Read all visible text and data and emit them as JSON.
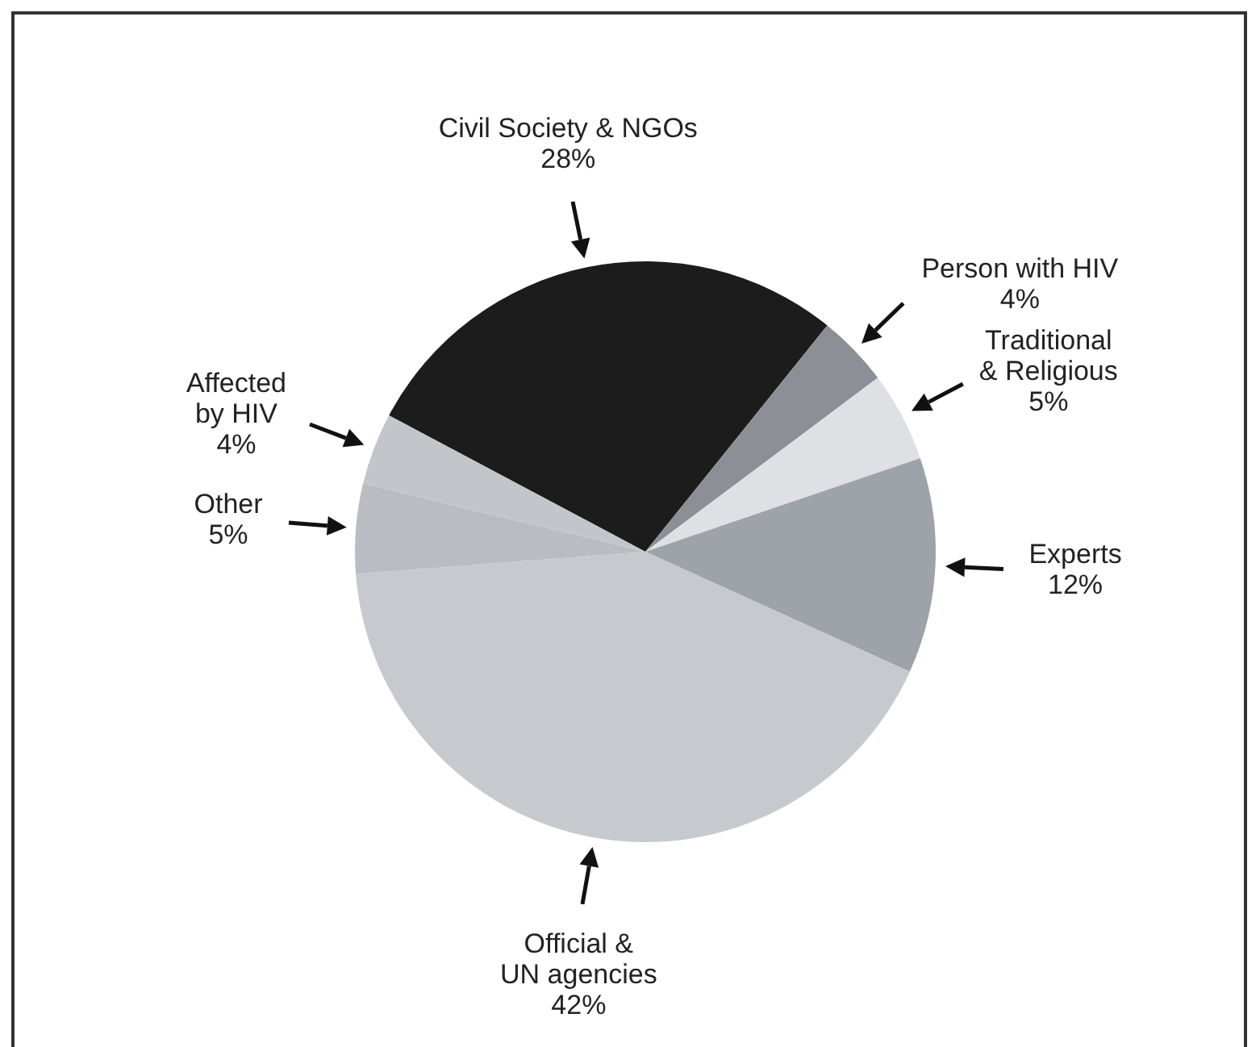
{
  "chart_data": {
    "type": "pie",
    "categories": [
      "Civil Society & NGOs",
      "Person with HIV",
      "Traditional\n& Religious",
      "Experts",
      "Official &\nUN agencies",
      "Other",
      "Affected\nby HIV"
    ],
    "values": [
      28,
      4,
      5,
      12,
      42,
      5,
      4
    ],
    "value_labels": [
      "28%",
      "4%",
      "5%",
      "12%",
      "42%",
      "5%",
      "4%"
    ],
    "colors": [
      "#1c1c1c",
      "#8c8f95",
      "#dfe0e4",
      "#9ea2a9",
      "#c6c9ce",
      "#b9bcc1",
      "#c2c5ca"
    ],
    "legend": false
  }
}
